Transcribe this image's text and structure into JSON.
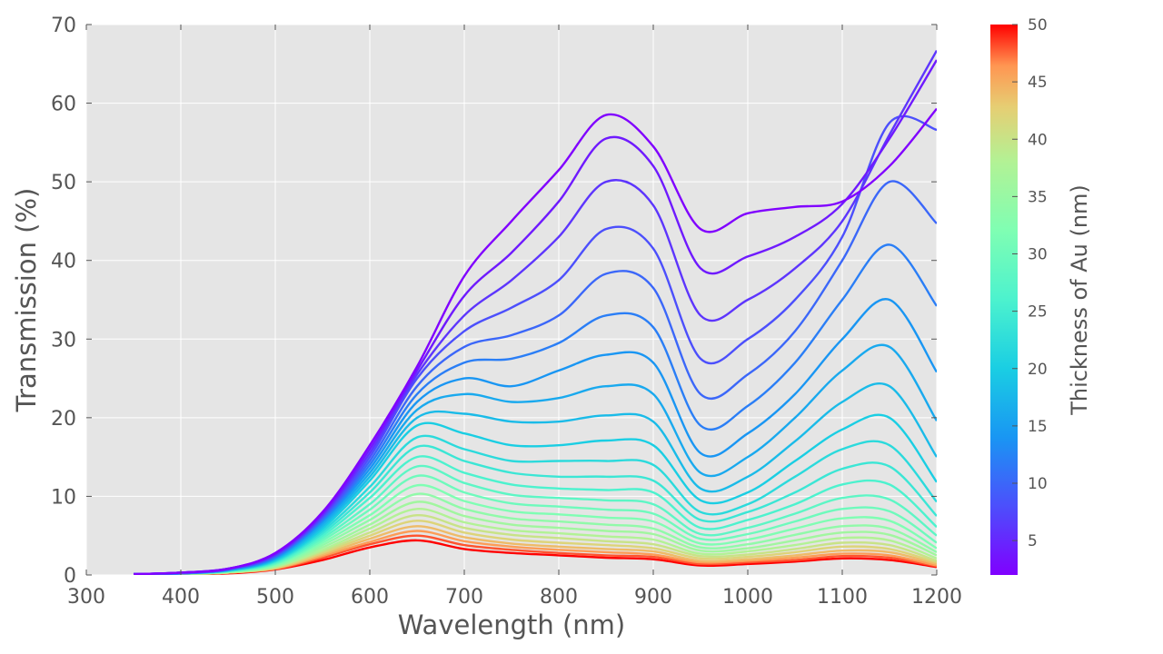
{
  "chart_data": {
    "type": "line",
    "xlabel": "Wavelength (nm)",
    "ylabel": "Transmission (%)",
    "xlim": [
      300,
      1200
    ],
    "ylim": [
      0,
      70
    ],
    "xticks": [
      "300",
      "400",
      "500",
      "600",
      "700",
      "800",
      "900",
      "1000",
      "1100",
      "1200"
    ],
    "yticks": [
      "0",
      "10",
      "20",
      "30",
      "40",
      "50",
      "60",
      "70"
    ],
    "grid": true,
    "colormap": "rainbow",
    "colorbar": {
      "label": "Thickness of Au (nm)",
      "range": [
        2,
        50
      ],
      "ticks": [
        "5",
        "10",
        "15",
        "20",
        "25",
        "30",
        "35",
        "40",
        "45",
        "50"
      ]
    },
    "wavelengths": [
      350,
      400,
      450,
      500,
      550,
      600,
      650,
      700,
      750,
      800,
      850,
      900,
      950,
      1000,
      1050,
      1100,
      1150,
      1200
    ],
    "series": [
      {
        "thickness": 2,
        "values": [
          0.1,
          0.3,
          0.8,
          2.8,
          8,
          16.5,
          26.5,
          38,
          45,
          51.5,
          58.5,
          54.5,
          44,
          46,
          46.8,
          47.5,
          52,
          59.3
        ]
      },
      {
        "thickness": 4,
        "values": [
          0.1,
          0.3,
          0.8,
          2.7,
          7.8,
          16,
          26,
          35.5,
          41,
          47.5,
          55.5,
          52,
          39,
          40.5,
          43,
          47.2,
          55.5,
          65.5
        ]
      },
      {
        "thickness": 6,
        "values": [
          0.1,
          0.3,
          0.8,
          2.6,
          7.6,
          15.5,
          25.5,
          33,
          37.5,
          43,
          50,
          47,
          33,
          35,
          39,
          45,
          56,
          66.7
        ]
      },
      {
        "thickness": 8,
        "values": [
          0.1,
          0.3,
          0.7,
          2.5,
          7.4,
          15,
          25,
          31,
          34,
          37.5,
          44,
          41.5,
          27.5,
          30,
          35,
          43,
          57.5,
          56.6
        ]
      },
      {
        "thickness": 10,
        "values": [
          0.1,
          0.2,
          0.7,
          2.4,
          7.2,
          14.5,
          24,
          29,
          30.5,
          33,
          38.3,
          36.5,
          23,
          25.5,
          31,
          40,
          50,
          44.7
        ]
      },
      {
        "thickness": 12,
        "values": [
          0.1,
          0.2,
          0.7,
          2.3,
          7,
          14,
          23,
          27,
          27.5,
          29.5,
          33,
          31.5,
          19,
          21.5,
          27,
          35,
          42,
          34.2
        ]
      },
      {
        "thickness": 14,
        "values": [
          0.1,
          0.2,
          0.7,
          2.2,
          6.8,
          13.5,
          22,
          25,
          24,
          26,
          28,
          27,
          15.5,
          18,
          23,
          30,
          35,
          25.8
        ]
      },
      {
        "thickness": 16,
        "values": [
          0.1,
          0.2,
          0.6,
          2.1,
          6.5,
          13,
          21,
          23,
          22,
          22.5,
          24,
          23,
          13,
          15,
          20,
          26,
          29,
          19.6
        ]
      },
      {
        "thickness": 18,
        "values": [
          0.1,
          0.2,
          0.6,
          2,
          6.2,
          12.5,
          20,
          20.5,
          19.5,
          19.5,
          20.3,
          19.5,
          11,
          12.5,
          17,
          22,
          24,
          15
        ]
      },
      {
        "thickness": 20,
        "values": [
          0.1,
          0.2,
          0.6,
          1.9,
          5.9,
          12,
          19,
          18,
          16.5,
          16.5,
          17.1,
          16.5,
          9.5,
          10.5,
          14.5,
          18.5,
          20,
          11.8
        ]
      },
      {
        "thickness": 22,
        "values": [
          0.1,
          0.2,
          0.6,
          1.8,
          5.6,
          11.2,
          17.5,
          16,
          14.5,
          14.5,
          14.5,
          14,
          8,
          9,
          12.5,
          16,
          16.5,
          9.3
        ]
      },
      {
        "thickness": 24,
        "values": [
          0.1,
          0.2,
          0.5,
          1.7,
          5.3,
          10.5,
          16.3,
          14.5,
          13,
          12.5,
          12.5,
          12,
          7,
          8,
          10.5,
          13.5,
          13.8,
          7.5
        ]
      },
      {
        "thickness": 26,
        "values": [
          0.1,
          0.2,
          0.5,
          1.6,
          5,
          9.8,
          15,
          13,
          11.5,
          11,
          10.8,
          10.5,
          6,
          7,
          9,
          11.5,
          11.5,
          6.1
        ]
      },
      {
        "thickness": 28,
        "values": [
          0.1,
          0.2,
          0.5,
          1.5,
          4.7,
          9,
          13.8,
          11.7,
          10.2,
          9.8,
          9.5,
          9,
          5.2,
          6,
          7.8,
          9.8,
          9.6,
          5
        ]
      },
      {
        "thickness": 30,
        "values": [
          0.1,
          0.2,
          0.5,
          1.4,
          4.4,
          8.3,
          12.6,
          10.5,
          9.1,
          8.7,
          8.3,
          7.8,
          4.6,
          5.2,
          6.8,
          8.4,
          8.1,
          4.1
        ]
      },
      {
        "thickness": 32,
        "values": [
          0.1,
          0.2,
          0.4,
          1.3,
          4.1,
          7.6,
          11.4,
          9.4,
          8.1,
          7.7,
          7.3,
          6.8,
          4,
          4.5,
          5.9,
          7.2,
          6.9,
          3.4
        ]
      },
      {
        "thickness": 34,
        "values": [
          0.1,
          0.2,
          0.4,
          1.2,
          3.8,
          7,
          10.3,
          8.4,
          7.2,
          6.8,
          6.4,
          5.9,
          3.5,
          3.9,
          5.1,
          6.2,
          5.9,
          2.9
        ]
      },
      {
        "thickness": 36,
        "values": [
          0.1,
          0.2,
          0.4,
          1.1,
          3.5,
          6.4,
          9.3,
          7.5,
          6.4,
          6,
          5.6,
          5.2,
          3.1,
          3.4,
          4.4,
          5.4,
          5.1,
          2.5
        ]
      },
      {
        "thickness": 38,
        "values": [
          0.1,
          0.2,
          0.4,
          1.05,
          3.2,
          5.9,
          8.4,
          6.7,
          5.7,
          5.3,
          4.9,
          4.5,
          2.7,
          3,
          3.8,
          4.7,
          4.4,
          2.1
        ]
      },
      {
        "thickness": 40,
        "values": [
          0.1,
          0.1,
          0.3,
          1,
          3,
          5.4,
          7.6,
          6,
          5.1,
          4.7,
          4.3,
          3.9,
          2.4,
          2.6,
          3.3,
          4.1,
          3.8,
          1.8
        ]
      },
      {
        "thickness": 42,
        "values": [
          0.1,
          0.1,
          0.3,
          0.9,
          2.8,
          5,
          6.9,
          5.4,
          4.5,
          4.1,
          3.8,
          3.4,
          2.1,
          2.3,
          2.9,
          3.6,
          3.3,
          1.6
        ]
      },
      {
        "thickness": 44,
        "values": [
          0.1,
          0.1,
          0.3,
          0.85,
          2.6,
          4.6,
          6.2,
          4.8,
          4,
          3.6,
          3.3,
          3,
          1.8,
          2,
          2.5,
          3.1,
          2.9,
          1.4
        ]
      },
      {
        "thickness": 46,
        "values": [
          0.1,
          0.1,
          0.3,
          0.8,
          2.4,
          4.2,
          5.6,
          4.3,
          3.6,
          3.2,
          2.9,
          2.6,
          1.6,
          1.8,
          2.2,
          2.7,
          2.5,
          1.2
        ]
      },
      {
        "thickness": 48,
        "values": [
          0.1,
          0.1,
          0.3,
          0.75,
          2.2,
          3.9,
          5,
          3.8,
          3.2,
          2.8,
          2.5,
          2.3,
          1.4,
          1.6,
          1.9,
          2.4,
          2.2,
          1.1
        ]
      },
      {
        "thickness": 50,
        "values": [
          0.1,
          0.1,
          0.2,
          0.7,
          1.9,
          3.5,
          4.4,
          3.3,
          2.8,
          2.5,
          2.2,
          2,
          1.2,
          1.4,
          1.7,
          2.1,
          1.9,
          1
        ]
      }
    ]
  }
}
